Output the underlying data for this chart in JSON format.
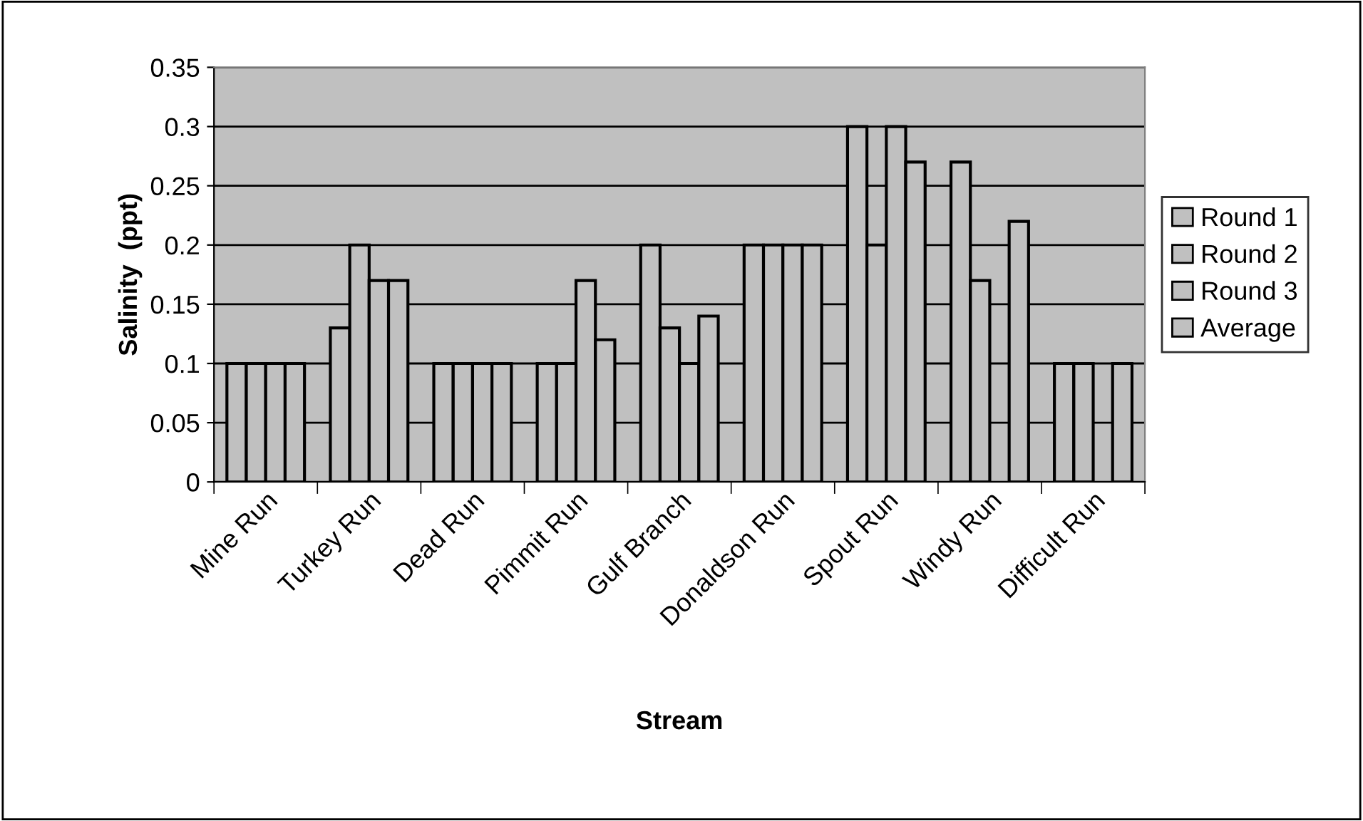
{
  "chart_data": {
    "type": "bar",
    "xlabel": "Stream",
    "ylabel": "Salinity  (ppt)",
    "categories": [
      "Mine Run",
      "Turkey Run",
      "Dead Run",
      "Pimmit Run",
      "Gulf Branch",
      "Donaldson Run",
      "Spout Run",
      "Windy Run",
      "Difficult Run"
    ],
    "series": [
      {
        "name": "Round 1",
        "color": "#c0c0c0",
        "values": [
          0.1,
          0.13,
          0.1,
          0.1,
          0.2,
          0.2,
          0.3,
          0.27,
          0.1
        ]
      },
      {
        "name": "Round 2",
        "color": "#c0c0c0",
        "values": [
          0.1,
          0.2,
          0.1,
          0.1,
          0.13,
          0.2,
          0.2,
          0.17,
          0.1
        ]
      },
      {
        "name": "Round 3",
        "color": "#c0c0c0",
        "values": [
          0.1,
          0.17,
          0.1,
          0.17,
          0.1,
          0.2,
          0.3,
          null,
          null
        ]
      },
      {
        "name": "Average",
        "color": "#c0c0c0",
        "values": [
          0.1,
          0.17,
          0.1,
          0.12,
          0.14,
          0.2,
          0.27,
          0.22,
          0.1
        ]
      }
    ],
    "ylim": [
      0,
      0.35
    ],
    "yticks": [
      0,
      0.05,
      0.1,
      0.15,
      0.2,
      0.25,
      0.3,
      0.35
    ],
    "grid": "y",
    "legend": "right"
  }
}
